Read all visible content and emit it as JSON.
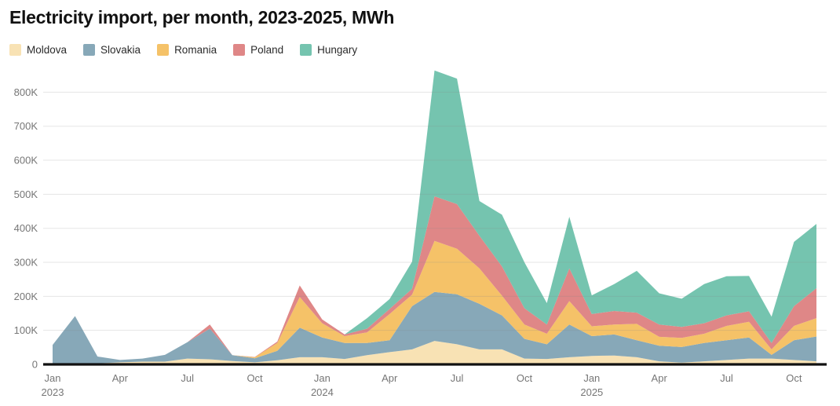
{
  "title": "Electricity import, per month, 2023-2025, MWh",
  "unit": "MWh",
  "legend": [
    {
      "label": "Moldova",
      "color": "#f8e2b4"
    },
    {
      "label": "Slovakia",
      "color": "#87a8b8"
    },
    {
      "label": "Romania",
      "color": "#f5c268"
    },
    {
      "label": "Poland",
      "color": "#df8787"
    },
    {
      "label": "Hungary",
      "color": "#75c4af"
    }
  ],
  "colors": {
    "background": "#ffffff",
    "axis_text": "#767676",
    "grid_line": "#e3e3e3",
    "zero_line": "#111111",
    "title_text": "#111111"
  },
  "chart_data": {
    "type": "area",
    "stacked": true,
    "title": "Electricity import, per month, 2023-2025, MWh",
    "xlabel": "",
    "ylabel": "MWh",
    "ylim": [
      0,
      870000
    ],
    "grid": true,
    "legend_position": "top-left",
    "categories": [
      "Jan 2023",
      "Feb 2023",
      "Mar 2023",
      "Apr 2023",
      "May 2023",
      "Jun 2023",
      "Jul 2023",
      "Aug 2023",
      "Sep 2023",
      "Oct 2023",
      "Nov 2023",
      "Dec 2023",
      "Jan 2024",
      "Feb 2024",
      "Mar 2024",
      "Apr 2024",
      "May 2024",
      "Jun 2024",
      "Jul 2024",
      "Aug 2024",
      "Sep 2024",
      "Oct 2024",
      "Nov 2024",
      "Dec 2024",
      "Jan 2025",
      "Feb 2025",
      "Mar 2025",
      "Apr 2025",
      "May 2025",
      "Jun 2025",
      "Jul 2025",
      "Aug 2025",
      "Sep 2025",
      "Oct 2025",
      "Nov 2025"
    ],
    "series": [
      {
        "name": "Moldova",
        "color": "#f8e2b4",
        "values": [
          2000,
          2000,
          3000,
          6000,
          8000,
          8000,
          17000,
          15000,
          10000,
          6000,
          12000,
          21000,
          21000,
          16000,
          27000,
          36000,
          44000,
          69000,
          59000,
          44000,
          44000,
          17000,
          16000,
          21000,
          25000,
          26000,
          21000,
          9000,
          5000,
          9000,
          13000,
          17000,
          17000,
          13000,
          9000
        ]
      },
      {
        "name": "Slovakia",
        "color": "#87a8b8",
        "values": [
          55000,
          140000,
          20000,
          7000,
          9000,
          20000,
          48000,
          90000,
          17000,
          12000,
          28000,
          87000,
          58000,
          47000,
          36000,
          35000,
          127000,
          144000,
          147000,
          134000,
          100000,
          58000,
          43000,
          96000,
          58000,
          62000,
          50000,
          46000,
          46000,
          54000,
          58000,
          62000,
          11000,
          58000,
          73000
        ]
      },
      {
        "name": "Romania",
        "color": "#f5c268",
        "values": [
          0,
          0,
          0,
          0,
          0,
          0,
          0,
          0,
          0,
          3000,
          23000,
          90000,
          42000,
          20000,
          31000,
          77000,
          34000,
          150000,
          134000,
          104000,
          58000,
          42000,
          31000,
          69000,
          29000,
          29000,
          48000,
          26000,
          27000,
          27000,
          42000,
          46000,
          16000,
          42000,
          54000
        ]
      },
      {
        "name": "Poland",
        "color": "#df8787",
        "values": [
          0,
          0,
          0,
          0,
          0,
          0,
          0,
          12000,
          0,
          1000,
          4000,
          34000,
          11000,
          5000,
          11000,
          15000,
          17000,
          131000,
          131000,
          96000,
          86000,
          48000,
          27000,
          96000,
          36000,
          40000,
          33000,
          36000,
          32000,
          31000,
          31000,
          31000,
          19000,
          58000,
          88000
        ]
      },
      {
        "name": "Hungary",
        "color": "#75c4af",
        "values": [
          0,
          0,
          0,
          0,
          0,
          0,
          0,
          0,
          0,
          0,
          0,
          0,
          0,
          0,
          31000,
          29000,
          80000,
          370000,
          369000,
          102000,
          152000,
          135000,
          63000,
          152000,
          55000,
          79000,
          123000,
          92000,
          83000,
          115000,
          115000,
          104000,
          77000,
          189000,
          189000
        ]
      }
    ],
    "axis": {
      "y_ticks": [
        "0",
        "100K",
        "200K",
        "300K",
        "400K",
        "500K",
        "600K",
        "700K",
        "800K"
      ],
      "y_tick_step": 100000,
      "x_ticks": [
        {
          "index": 0,
          "label": "Jan",
          "year": "2023"
        },
        {
          "index": 3,
          "label": "Apr"
        },
        {
          "index": 6,
          "label": "Jul"
        },
        {
          "index": 9,
          "label": "Oct"
        },
        {
          "index": 12,
          "label": "Jan",
          "year": "2024"
        },
        {
          "index": 15,
          "label": "Apr"
        },
        {
          "index": 18,
          "label": "Jul"
        },
        {
          "index": 21,
          "label": "Oct"
        },
        {
          "index": 24,
          "label": "Jan",
          "year": "2025"
        },
        {
          "index": 27,
          "label": "Apr"
        },
        {
          "index": 30,
          "label": "Jul"
        },
        {
          "index": 33,
          "label": "Oct"
        }
      ]
    }
  }
}
